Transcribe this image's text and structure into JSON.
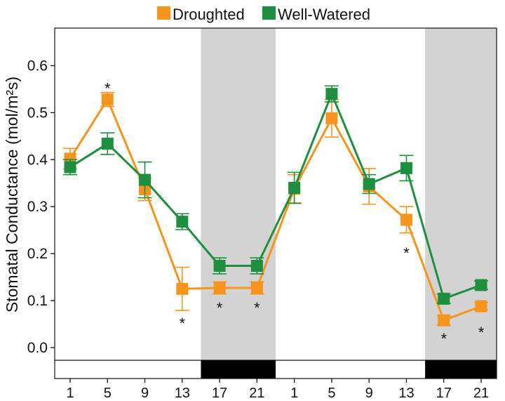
{
  "chart_data": {
    "type": "line",
    "title": "",
    "xlabel": "",
    "ylabel": "Stomatal Conductance (mol/m²s)",
    "ylim": [
      -0.03,
      0.68
    ],
    "yticks": [
      0.0,
      0.1,
      0.2,
      0.3,
      0.4,
      0.5,
      0.6
    ],
    "categories": [
      "1",
      "5",
      "9",
      "13",
      "17",
      "21",
      "1",
      "5",
      "9",
      "13",
      "17",
      "21"
    ],
    "shaded_periods": [
      {
        "start_index": 3.5,
        "end_index": 5.5,
        "label": "dark"
      },
      {
        "start_index": 9.5,
        "end_index": 11.5,
        "label": "dark"
      }
    ],
    "legend_position": "top-center",
    "series": [
      {
        "name": "Droughted",
        "color": "#F7941D",
        "values": [
          0.402,
          0.528,
          0.337,
          0.125,
          0.127,
          0.127,
          0.338,
          0.488,
          0.343,
          0.272,
          0.058,
          0.088
        ],
        "errors": [
          0.022,
          0.015,
          0.024,
          0.046,
          0.013,
          0.013,
          0.03,
          0.04,
          0.038,
          0.028,
          0.01,
          0.008
        ]
      },
      {
        "name": "Well-Watered",
        "color": "#1E8F3E",
        "values": [
          0.384,
          0.434,
          0.357,
          0.268,
          0.174,
          0.174,
          0.34,
          0.54,
          0.348,
          0.382,
          0.104,
          0.133
        ],
        "errors": [
          0.016,
          0.023,
          0.038,
          0.017,
          0.017,
          0.017,
          0.033,
          0.017,
          0.02,
          0.027,
          0.01,
          0.009
        ]
      }
    ],
    "annotations": [
      {
        "text": "*",
        "index": 1,
        "value": 0.555
      },
      {
        "text": "*",
        "index": 3,
        "value": 0.055
      },
      {
        "text": "*",
        "index": 4,
        "value": 0.088
      },
      {
        "text": "*",
        "index": 5,
        "value": 0.088
      },
      {
        "text": "*",
        "index": 9,
        "value": 0.205
      },
      {
        "text": "*",
        "index": 10,
        "value": 0.022
      },
      {
        "text": "*",
        "index": 11,
        "value": 0.036
      }
    ]
  }
}
